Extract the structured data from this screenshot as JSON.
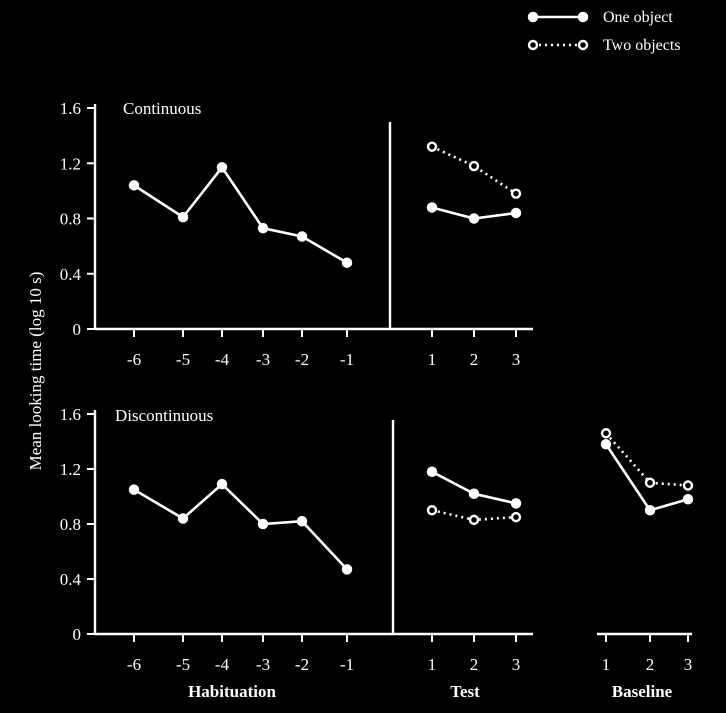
{
  "chart_data": {
    "type": "line",
    "ylabel": "Mean looking time (log 10 s)",
    "ylim": [
      0,
      1.6
    ],
    "yticks": [
      "0",
      "0.4",
      "0.8",
      "1.2",
      "1.6"
    ],
    "legend": {
      "placement": "top-right",
      "entries": [
        "One object",
        "Two objects"
      ]
    },
    "groups": {
      "habituation": {
        "label": "Habituation",
        "ticks": [
          "-6",
          "-5",
          "-4",
          "-3",
          "-2",
          "-1"
        ]
      },
      "test": {
        "label": "Test",
        "ticks": [
          "1",
          "2",
          "3"
        ]
      },
      "baseline": {
        "label": "Baseline",
        "ticks": [
          "1",
          "2",
          "3"
        ]
      }
    },
    "panels": [
      {
        "title": "Continuous",
        "habituation": {
          "values": [
            1.04,
            0.81,
            1.17,
            0.73,
            0.67,
            0.48
          ]
        },
        "test": {
          "series": [
            {
              "name": "One object",
              "values": [
                0.88,
                0.8,
                0.84
              ]
            },
            {
              "name": "Two objects",
              "values": [
                1.32,
                1.18,
                0.98
              ]
            }
          ]
        }
      },
      {
        "title": "Discontinuous",
        "habituation": {
          "values": [
            1.05,
            0.84,
            1.09,
            0.8,
            0.82,
            0.47
          ]
        },
        "test": {
          "series": [
            {
              "name": "One object",
              "values": [
                1.18,
                1.02,
                0.95
              ]
            },
            {
              "name": "Two objects",
              "values": [
                0.9,
                0.83,
                0.85
              ]
            }
          ]
        },
        "baseline": {
          "series": [
            {
              "name": "One object",
              "values": [
                1.38,
                0.9,
                0.98
              ]
            },
            {
              "name": "Two objects",
              "values": [
                1.46,
                1.1,
                1.08
              ]
            }
          ]
        }
      }
    ]
  }
}
